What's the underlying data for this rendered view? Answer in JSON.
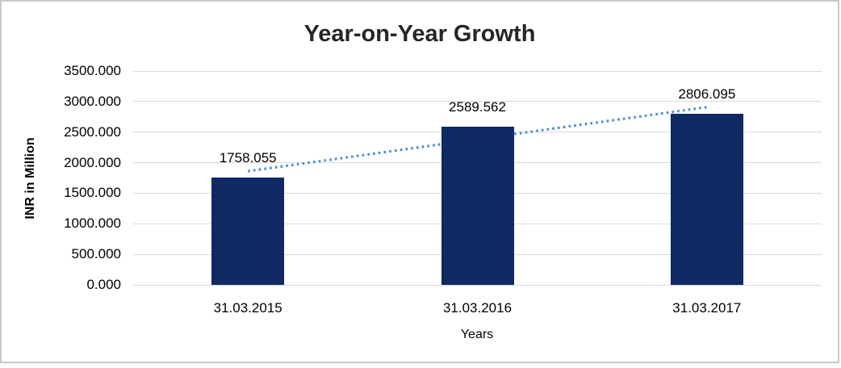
{
  "window": {
    "background": "#FFFFFF",
    "border_color": "#C9C9C9"
  },
  "chart_data": {
    "type": "bar",
    "title": "Year-on-Year Growth",
    "categories": [
      "31.03.2015",
      "31.03.2016",
      "31.03.2017"
    ],
    "values": [
      1758.055,
      2589.562,
      2806.095
    ],
    "data_labels": [
      "1758.055",
      "2589.562",
      "2806.095"
    ],
    "xlabel": "Years",
    "ylabel": "INR in Million",
    "ylim": [
      0,
      3500
    ],
    "ytick_step": 500,
    "ytick_labels": [
      "3500.000",
      "3000.000",
      "2500.000",
      "2000.000",
      "1500.000",
      "1000.000",
      "500.000",
      "0.000"
    ],
    "grid": true,
    "legend": "none",
    "trendline": {
      "fit": "linear",
      "style": "dotted"
    },
    "colors": {
      "bar": "#0E2963",
      "trendline": "#4E8CD0",
      "gridline": "#D9D9D9",
      "title_text": "#262626",
      "label_text": "#000000"
    }
  }
}
